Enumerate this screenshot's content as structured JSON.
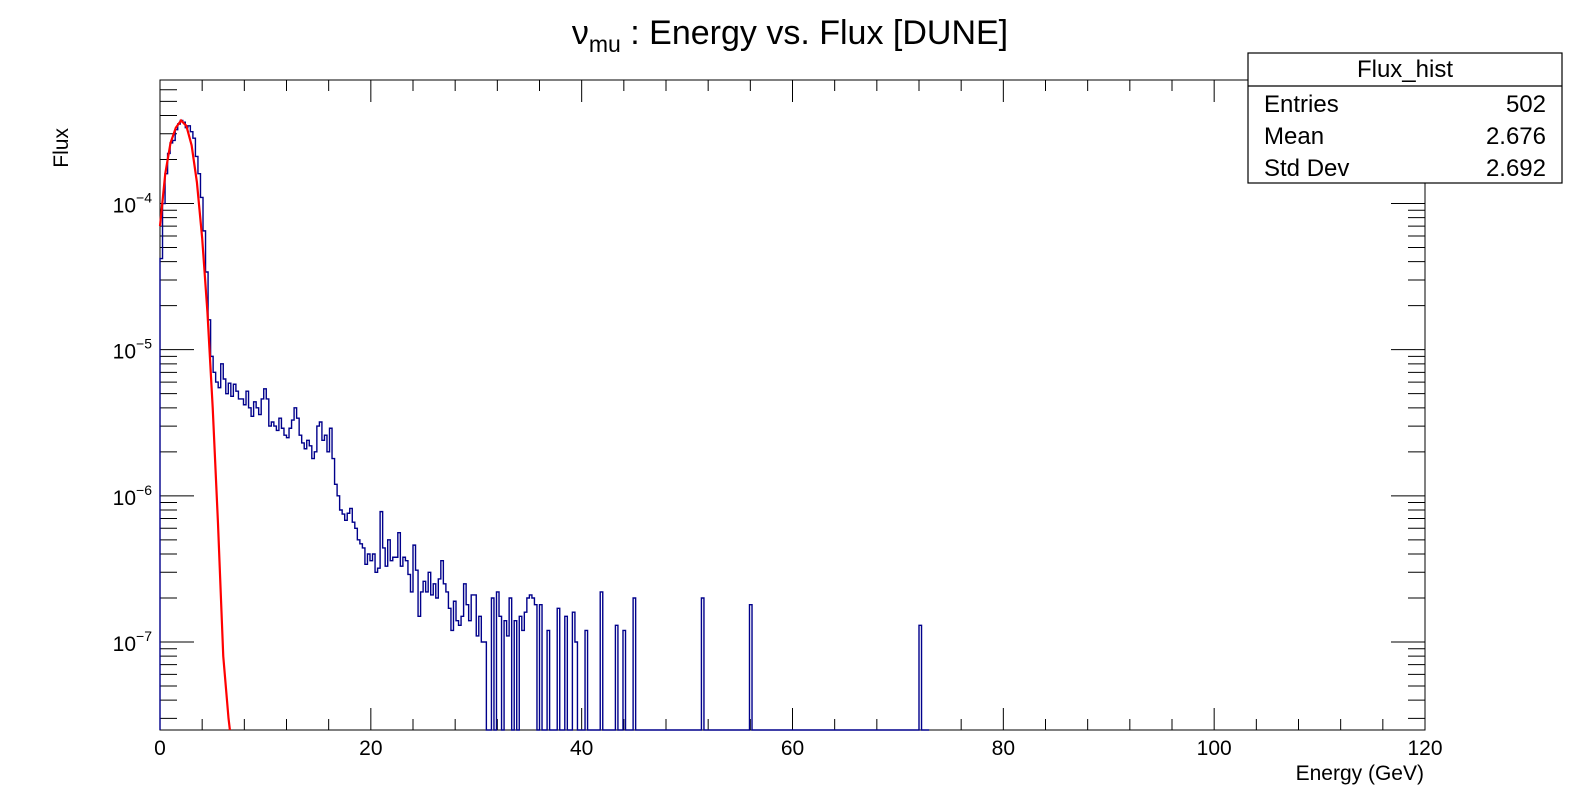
{
  "chart_data": {
    "type": "histogram",
    "title": {
      "symbol": "ν",
      "subscript": "mu",
      "rest": " : Energy vs. Flux [DUNE]"
    },
    "xlabel": "Energy (GeV)",
    "ylabel": "Flux",
    "xlim": [
      0,
      120
    ],
    "ylim": [
      2.5e-08,
      0.0007
    ],
    "y_scale": "log",
    "x_ticks": [
      0,
      20,
      40,
      60,
      80,
      100,
      120
    ],
    "y_ticks": [
      {
        "base": "10",
        "exp": "−4",
        "value": 0.0001
      },
      {
        "base": "10",
        "exp": "−5",
        "value": 1e-05
      },
      {
        "base": "10",
        "exp": "−6",
        "value": 1e-06
      },
      {
        "base": "10",
        "exp": "−7",
        "value": 1e-07
      }
    ],
    "grid": false,
    "colors": {
      "histogram": "#00008b",
      "fit": "#ff0000",
      "axes": "#000000"
    },
    "series": [
      {
        "kind": "histogram",
        "bin_width": 0.24,
        "x_start": 0,
        "values": [
          4.2e-05,
          0.0001,
          0.00016,
          0.00022,
          0.00026,
          0.00027,
          0.00032,
          0.00035,
          0.00037,
          0.00036,
          0.00033,
          0.00034,
          0.00031,
          0.00028,
          0.00021,
          0.00016,
          0.00011,
          6.5e-05,
          3.4e-05,
          1.6e-05,
          9e-06,
          7e-06,
          6e-06,
          5.5e-06,
          8e-06,
          6.3e-06,
          5e-06,
          5.9e-06,
          4.8e-06,
          5.8e-06,
          5.2e-06,
          4.6e-06,
          4.6e-06,
          4.2e-06,
          5.2e-06,
          4e-06,
          3.5e-06,
          4.4e-06,
          4e-06,
          3.6e-06,
          4.6e-06,
          5.4e-06,
          4.6e-06,
          3e-06,
          3.2e-06,
          3e-06,
          2.8e-06,
          3.4e-06,
          2.9e-06,
          2.6e-06,
          2.5e-06,
          2.9e-06,
          3.3e-06,
          4e-06,
          3.4e-06,
          2.6e-06,
          2.3e-06,
          2.1e-06,
          2.4e-06,
          2.2e-06,
          1.8e-06,
          2e-06,
          3e-06,
          3.2e-06,
          2.4e-06,
          2.6e-06,
          2e-06,
          2.9e-06,
          1.8e-06,
          1.2e-06,
          1e-06,
          8e-07,
          7.5e-07,
          6.8e-07,
          7.6e-07,
          8.2e-07,
          6.6e-07,
          6e-07,
          5e-07,
          4.7e-07,
          4.4e-07,
          3.4e-07,
          4e-07,
          3.6e-07,
          4e-07,
          3e-07,
          3.2e-07,
          7.8e-07,
          4.4e-07,
          3.3e-07,
          5e-07,
          3.6e-07,
          3.8e-07,
          3.8e-07,
          5.6e-07,
          3.3e-07,
          3.8e-07,
          3.6e-07,
          2.9e-07,
          2.2e-07,
          4.6e-07,
          3.1e-07,
          1.5e-07,
          2.2e-07,
          2.6e-07,
          2.2e-07,
          3e-07,
          2.1e-07,
          2.5e-07,
          2e-07,
          2.7e-07,
          3.6e-07,
          2.5e-07,
          2.2e-07,
          1.7e-07,
          1.2e-07,
          1.9e-07,
          1.4e-07,
          1.3e-07,
          1.5e-07,
          2.5e-07,
          1.8e-07,
          1.4e-07,
          2.1e-07,
          2.1e-07,
          1.1e-07,
          1.5e-07,
          1e-07,
          1e-07,
          0,
          0,
          2e-07,
          0,
          2.2e-07,
          1.5e-07,
          0,
          1.4e-07,
          1.1e-07,
          2e-07,
          0,
          1.4e-07,
          0,
          1.5e-07,
          1.2e-07,
          1.6e-07,
          2e-07,
          2.1e-07,
          2e-07,
          1.8e-07,
          0,
          1.8e-07,
          0,
          0,
          1.2e-07,
          0,
          0,
          0,
          1.7e-07,
          0,
          0,
          1.5e-07,
          0,
          0,
          1.6e-07,
          1e-07,
          0,
          0,
          0,
          1.2e-07,
          0,
          0,
          0,
          0,
          0,
          2.2e-07,
          0,
          0,
          0,
          0,
          0,
          1.3e-07,
          0,
          0,
          1.2e-07,
          0,
          0,
          0,
          2e-07,
          0,
          0,
          0,
          0,
          0,
          0,
          0,
          0,
          0,
          0,
          0,
          0,
          0,
          0,
          0,
          0,
          0,
          0,
          0,
          0,
          0,
          0,
          0,
          0,
          0,
          0,
          2e-07,
          0,
          0,
          0,
          0,
          0,
          0,
          0,
          0,
          0,
          0,
          0,
          0,
          0,
          0,
          0,
          0,
          0,
          0,
          1.8e-07,
          0,
          0,
          0,
          0,
          0,
          0,
          0,
          0,
          0,
          0,
          0,
          0,
          0,
          0,
          0,
          0,
          0,
          0,
          0,
          0,
          0,
          0,
          0,
          0,
          0,
          0,
          0,
          0,
          0,
          0,
          0,
          0,
          0,
          0,
          0,
          0,
          0,
          0,
          0,
          0,
          0,
          0,
          0,
          0,
          0,
          0,
          0,
          0,
          0,
          0,
          0,
          0,
          0,
          0,
          0,
          0,
          0,
          0,
          0,
          0,
          0,
          0,
          0,
          0,
          0,
          0,
          1.3e-07,
          0,
          0,
          0
        ]
      },
      {
        "kind": "fit",
        "x": [
          0,
          0.5,
          1.0,
          1.5,
          2.0,
          2.5,
          3.0,
          3.5,
          4.0,
          4.5,
          5.0,
          5.5,
          6.0,
          6.5,
          7.0
        ],
        "y": [
          7e-05,
          0.00016,
          0.00026,
          0.00033,
          0.00037,
          0.00034,
          0.00025,
          0.00014,
          5.8e-05,
          1.8e-05,
          4e-06,
          6.5e-07,
          8e-08,
          3e-08,
          1.5e-08
        ]
      }
    ],
    "stats_box": {
      "title": "Flux_hist",
      "rows": [
        {
          "label": "Entries",
          "value": "502"
        },
        {
          "label": "Mean",
          "value": "2.676"
        },
        {
          "label": "Std Dev",
          "value": "2.692"
        }
      ]
    }
  }
}
